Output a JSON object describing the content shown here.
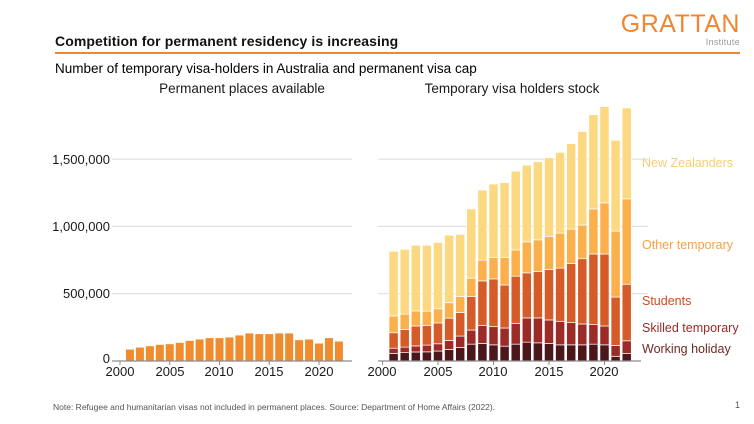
{
  "header": {
    "title": "Competition for permanent residency is increasing",
    "subtitle": "Number of temporary visa-holders in Australia and permanent visa cap",
    "logo": {
      "name": "GRATTAN",
      "sub": "Institute"
    }
  },
  "footer": {
    "note": "Note: Refugee and humanitarian visas not included in permanent places. Source: Department of Home Affairs (2022).",
    "page_number": "1"
  },
  "colors": {
    "accent_orange": "#EF8632",
    "permanent_bar": "#F08C2E",
    "new_zealanders": "#FCD981",
    "other_temporary": "#FBB04C",
    "students": "#D55C28",
    "skilled_temporary": "#9C2B27",
    "working_holiday": "#4B171A",
    "gridline": "#DBDBDB",
    "axis": "#8C8C8C"
  },
  "axes": {
    "y_ticks": [
      "0",
      "500,000",
      "1,000,000",
      "1,500,000"
    ],
    "x_ticks": [
      "2000",
      "2005",
      "2010",
      "2015",
      "2020"
    ]
  },
  "legend": [
    {
      "label": "New Zealanders",
      "color": "#F8CD74"
    },
    {
      "label": "Other temporary",
      "color": "#F9A13C"
    },
    {
      "label": "Students",
      "color": "#CE4B22"
    },
    {
      "label": "Skilled temporary",
      "color": "#9C2B27"
    },
    {
      "label": "Working holiday",
      "color": "#6B2B27"
    }
  ],
  "chart_data": [
    {
      "type": "bar",
      "title": "Permanent places available",
      "x": [
        2001,
        2002,
        2003,
        2004,
        2005,
        2006,
        2007,
        2008,
        2009,
        2010,
        2011,
        2012,
        2013,
        2014,
        2015,
        2016,
        2017,
        2018,
        2019,
        2020,
        2021,
        2022
      ],
      "values": [
        85000,
        100000,
        110000,
        120000,
        125000,
        135000,
        150000,
        160000,
        170000,
        170000,
        175000,
        190000,
        205000,
        200000,
        200000,
        205000,
        205000,
        155000,
        160000,
        130000,
        170000,
        145000
      ],
      "color_key": "permanent_bar",
      "ylim": [
        0,
        1950000
      ],
      "y_gridlines": [
        500000,
        1000000,
        1500000
      ],
      "grid": true,
      "legend_position": "none"
    },
    {
      "type": "stacked-bar",
      "title": "Temporary visa holders stock",
      "x": [
        2001,
        2002,
        2003,
        2004,
        2005,
        2006,
        2007,
        2008,
        2009,
        2010,
        2011,
        2012,
        2013,
        2014,
        2015,
        2016,
        2017,
        2018,
        2019,
        2020,
        2021,
        2022
      ],
      "series": [
        {
          "name": "Working holiday",
          "color_key": "working_holiday",
          "values": [
            57000,
            62000,
            67000,
            68000,
            74000,
            86000,
            100000,
            125000,
            130000,
            120000,
            110000,
            125000,
            140000,
            135000,
            130000,
            120000,
            120000,
            120000,
            125000,
            120000,
            35000,
            55000
          ]
        },
        {
          "name": "Skilled temporary",
          "color_key": "skilled_temporary",
          "values": [
            38000,
            41000,
            45000,
            50000,
            54000,
            67000,
            85000,
            105000,
            135000,
            135000,
            135000,
            155000,
            180000,
            185000,
            175000,
            175000,
            165000,
            155000,
            145000,
            140000,
            80000,
            95000
          ]
        },
        {
          "name": "Students",
          "color_key": "students",
          "values": [
            115000,
            130000,
            148000,
            147000,
            155000,
            165000,
            175000,
            250000,
            330000,
            355000,
            320000,
            350000,
            335000,
            345000,
            375000,
            395000,
            440000,
            485000,
            525000,
            535000,
            360000,
            420000
          ]
        },
        {
          "name": "Other temporary",
          "color_key": "other_temporary",
          "values": [
            125000,
            115000,
            112000,
            105000,
            105000,
            115000,
            120000,
            135000,
            155000,
            160000,
            205000,
            195000,
            230000,
            235000,
            245000,
            260000,
            255000,
            250000,
            335000,
            380000,
            490000,
            635000
          ]
        },
        {
          "name": "New Zealanders",
          "color_key": "new_zealanders",
          "values": [
            480000,
            482000,
            488000,
            490000,
            492000,
            502000,
            460000,
            515000,
            520000,
            545000,
            555000,
            585000,
            570000,
            580000,
            585000,
            600000,
            635000,
            695000,
            700000,
            715000,
            675000,
            675000
          ]
        }
      ],
      "ylim": [
        0,
        1950000
      ],
      "y_gridlines": [
        500000,
        1000000,
        1500000
      ],
      "grid": true,
      "legend_position": "right"
    }
  ]
}
